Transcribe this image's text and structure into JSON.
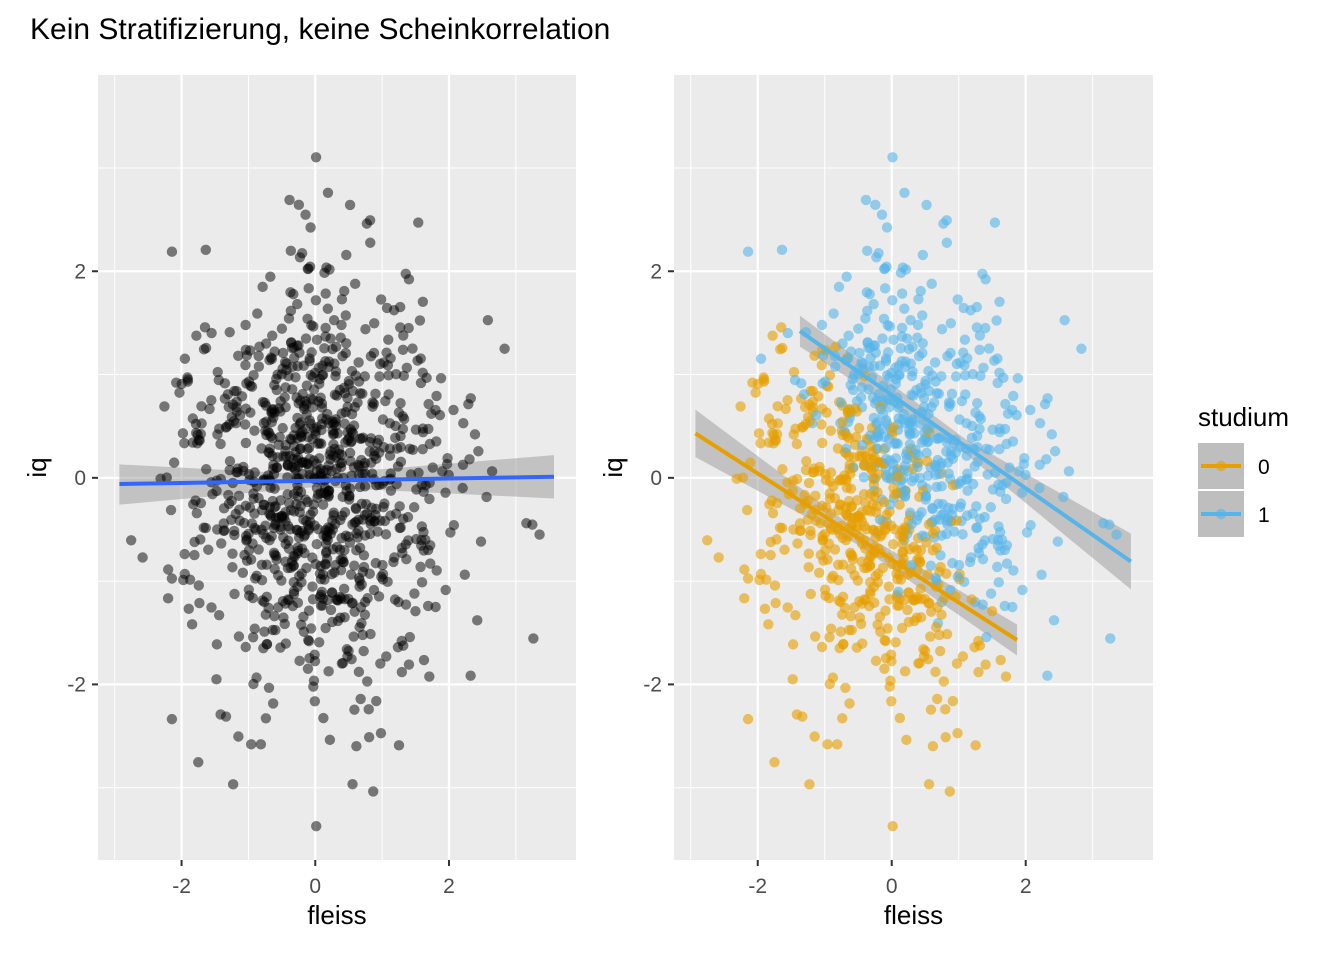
{
  "title": "Kein Stratifizierung, keine Scheinkorrelation",
  "chart_data": [
    {
      "type": "scatter",
      "panel": "left",
      "xlabel": "fleiss",
      "ylabel": "iq",
      "xlim": [
        -3.25,
        3.9
      ],
      "ylim": [
        -3.7,
        3.9
      ],
      "x_ticks": [
        -2,
        0,
        2
      ],
      "y_ticks": [
        -2,
        0,
        2
      ],
      "grid": true,
      "point_color": "#000000",
      "point_alpha": 0.5,
      "n_points": 1000,
      "points": "all observations (studium 0 and 1 combined), same cloud as right panel",
      "smooth": {
        "method": "lm",
        "color": "#3366FF",
        "x": [
          -2.93,
          3.57
        ],
        "y": [
          -0.06,
          0.01
        ],
        "ci_lower": [
          -0.26,
          -0.2
        ],
        "ci_upper": [
          0.13,
          0.22
        ]
      }
    },
    {
      "type": "scatter",
      "panel": "right",
      "xlabel": "fleiss",
      "ylabel": "iq",
      "xlim": [
        -3.25,
        3.9
      ],
      "ylim": [
        -3.7,
        3.9
      ],
      "x_ticks": [
        -2,
        0,
        2
      ],
      "y_ticks": [
        -2,
        0,
        2
      ],
      "grid": true,
      "point_alpha": 0.6,
      "series": [
        {
          "name": "0",
          "color": "#E69F00",
          "fit_x": [
            -2.93,
            1.87
          ],
          "fit_y": [
            0.43,
            -1.57
          ],
          "ci_lower_at_ends": [
            0.2,
            -1.72
          ],
          "ci_upper_at_ends": [
            0.66,
            -1.42
          ]
        },
        {
          "name": "1",
          "color": "#56B4E9",
          "fit_x": [
            -1.37,
            3.57
          ],
          "fit_y": [
            1.42,
            -0.81
          ],
          "ci_lower_at_ends": [
            1.27,
            -1.08
          ],
          "ci_upper_at_ends": [
            1.57,
            -0.54
          ]
        }
      ],
      "legend": {
        "title": "studium",
        "position": "right",
        "entries": [
          {
            "label": "0",
            "color": "#E69F00"
          },
          {
            "label": "1",
            "color": "#56B4E9"
          }
        ]
      }
    }
  ]
}
